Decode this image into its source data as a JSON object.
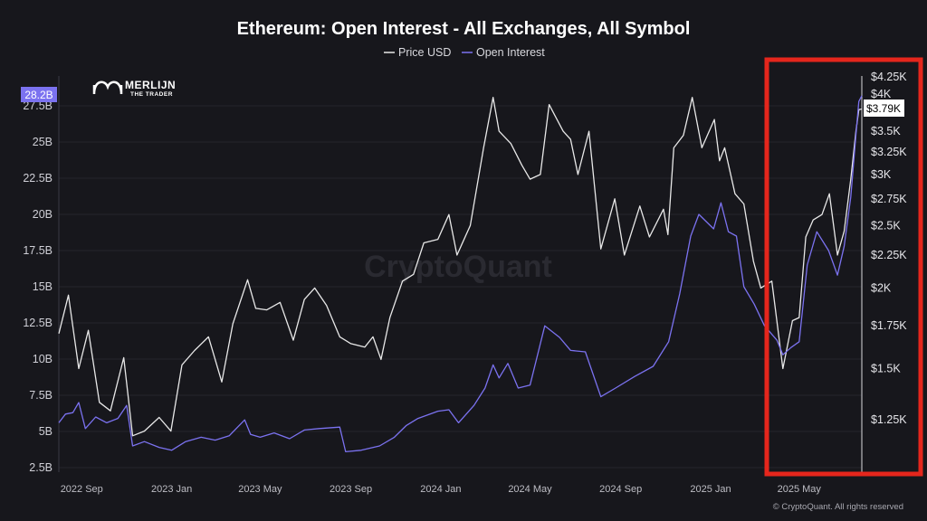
{
  "header": {
    "title": "Ethereum: Open Interest - All Exchanges, All Symbol"
  },
  "legend": {
    "items": [
      {
        "label": "Price USD",
        "color": "#e8e8e8"
      },
      {
        "label": "Open Interest",
        "color": "#7b72f0"
      }
    ]
  },
  "logo": {
    "name": "MERLIJN",
    "sub": "THE TRADER"
  },
  "watermark": "CryptoQuant",
  "copyright": "© CryptoQuant. All rights reserved",
  "current": {
    "oi_label": "28.2B",
    "price_label": "$3.79K"
  },
  "highlight": {
    "color": "#e5261c"
  },
  "chart_data": {
    "type": "line",
    "title": "Ethereum: Open Interest - All Exchanges, All Symbol",
    "x_range": [
      "2022-08-01",
      "2025-07-25"
    ],
    "x_ticks": [
      {
        "date": "2022-09-01",
        "label": "2022 Sep"
      },
      {
        "date": "2023-01-01",
        "label": "2023 Jan"
      },
      {
        "date": "2023-05-01",
        "label": "2023 May"
      },
      {
        "date": "2023-09-01",
        "label": "2023 Sep"
      },
      {
        "date": "2024-01-01",
        "label": "2024 Jan"
      },
      {
        "date": "2024-05-01",
        "label": "2024 May"
      },
      {
        "date": "2024-09-01",
        "label": "2024 Sep"
      },
      {
        "date": "2025-01-01",
        "label": "2025 Jan"
      },
      {
        "date": "2025-05-01",
        "label": "2025 May"
      }
    ],
    "left_axis": {
      "series": "Open Interest",
      "ylim": [
        2.5,
        28.0
      ],
      "ticks": [
        {
          "value": 2.5,
          "label": "2.5B"
        },
        {
          "value": 5,
          "label": "5B"
        },
        {
          "value": 7.5,
          "label": "7.5B"
        },
        {
          "value": 10,
          "label": "10B"
        },
        {
          "value": 12.5,
          "label": "12.5B"
        },
        {
          "value": 15,
          "label": "15B"
        },
        {
          "value": 17.5,
          "label": "17.5B"
        },
        {
          "value": 20,
          "label": "20B"
        },
        {
          "value": 22.5,
          "label": "22.5B"
        },
        {
          "value": 25,
          "label": "25B"
        },
        {
          "value": 27.5,
          "label": "27.5B"
        }
      ]
    },
    "right_axis": {
      "series": "Price USD",
      "scale": "log",
      "ticks": [
        {
          "value": 1250,
          "label": "$1.25K"
        },
        {
          "value": 1500,
          "label": "$1.5K"
        },
        {
          "value": 1750,
          "label": "$1.75K"
        },
        {
          "value": 2000,
          "label": "$2K"
        },
        {
          "value": 2250,
          "label": "$2.25K"
        },
        {
          "value": 2500,
          "label": "$2.5K"
        },
        {
          "value": 2750,
          "label": "$2.75K"
        },
        {
          "value": 3000,
          "label": "$3K"
        },
        {
          "value": 3250,
          "label": "$3.25K"
        },
        {
          "value": 3500,
          "label": "$3.5K"
        },
        {
          "value": 4000,
          "label": "$4K"
        },
        {
          "value": 4250,
          "label": "$4.25K"
        }
      ]
    },
    "grid": "horizontal",
    "series": [
      {
        "name": "Price USD",
        "color": "#e8e8e8",
        "axis": "right",
        "points": [
          [
            "2022-08-01",
            1700
          ],
          [
            "2022-08-14",
            1950
          ],
          [
            "2022-08-28",
            1500
          ],
          [
            "2022-09-10",
            1720
          ],
          [
            "2022-09-25",
            1330
          ],
          [
            "2022-10-10",
            1290
          ],
          [
            "2022-10-28",
            1560
          ],
          [
            "2022-11-09",
            1180
          ],
          [
            "2022-11-25",
            1200
          ],
          [
            "2022-12-15",
            1260
          ],
          [
            "2022-12-31",
            1200
          ],
          [
            "2023-01-15",
            1520
          ],
          [
            "2023-02-01",
            1600
          ],
          [
            "2023-02-20",
            1680
          ],
          [
            "2023-03-10",
            1430
          ],
          [
            "2023-03-25",
            1760
          ],
          [
            "2023-04-14",
            2060
          ],
          [
            "2023-04-25",
            1860
          ],
          [
            "2023-05-10",
            1850
          ],
          [
            "2023-05-28",
            1900
          ],
          [
            "2023-06-15",
            1660
          ],
          [
            "2023-06-30",
            1920
          ],
          [
            "2023-07-14",
            2000
          ],
          [
            "2023-07-30",
            1880
          ],
          [
            "2023-08-17",
            1680
          ],
          [
            "2023-09-01",
            1640
          ],
          [
            "2023-09-20",
            1620
          ],
          [
            "2023-10-01",
            1680
          ],
          [
            "2023-10-12",
            1550
          ],
          [
            "2023-10-24",
            1800
          ],
          [
            "2023-11-10",
            2050
          ],
          [
            "2023-11-25",
            2100
          ],
          [
            "2023-12-09",
            2350
          ],
          [
            "2023-12-28",
            2380
          ],
          [
            "2024-01-12",
            2600
          ],
          [
            "2024-01-23",
            2250
          ],
          [
            "2024-02-10",
            2500
          ],
          [
            "2024-02-28",
            3300
          ],
          [
            "2024-03-12",
            3950
          ],
          [
            "2024-03-20",
            3500
          ],
          [
            "2024-04-05",
            3350
          ],
          [
            "2024-04-20",
            3100
          ],
          [
            "2024-05-01",
            2950
          ],
          [
            "2024-05-15",
            3000
          ],
          [
            "2024-05-27",
            3850
          ],
          [
            "2024-06-15",
            3500
          ],
          [
            "2024-06-25",
            3400
          ],
          [
            "2024-07-05",
            3000
          ],
          [
            "2024-07-20",
            3500
          ],
          [
            "2024-08-05",
            2300
          ],
          [
            "2024-08-24",
            2750
          ],
          [
            "2024-09-06",
            2250
          ],
          [
            "2024-09-27",
            2680
          ],
          [
            "2024-10-10",
            2400
          ],
          [
            "2024-10-29",
            2650
          ],
          [
            "2024-11-04",
            2420
          ],
          [
            "2024-11-12",
            3300
          ],
          [
            "2024-11-25",
            3450
          ],
          [
            "2024-12-07",
            3950
          ],
          [
            "2024-12-20",
            3300
          ],
          [
            "2025-01-06",
            3650
          ],
          [
            "2025-01-13",
            3150
          ],
          [
            "2025-01-20",
            3300
          ],
          [
            "2025-02-03",
            2800
          ],
          [
            "2025-02-15",
            2700
          ],
          [
            "2025-02-28",
            2200
          ],
          [
            "2025-03-10",
            2000
          ],
          [
            "2025-03-25",
            2050
          ],
          [
            "2025-04-09",
            1500
          ],
          [
            "2025-04-22",
            1780
          ],
          [
            "2025-05-01",
            1800
          ],
          [
            "2025-05-10",
            2400
          ],
          [
            "2025-05-20",
            2550
          ],
          [
            "2025-06-01",
            2600
          ],
          [
            "2025-06-11",
            2800
          ],
          [
            "2025-06-22",
            2250
          ],
          [
            "2025-07-01",
            2450
          ],
          [
            "2025-07-10",
            2950
          ],
          [
            "2025-07-17",
            3500
          ],
          [
            "2025-07-21",
            3780
          ],
          [
            "2025-07-25",
            3790
          ]
        ]
      },
      {
        "name": "Open Interest",
        "color": "#7b72f0",
        "axis": "left",
        "points": [
          [
            "2022-08-01",
            5.6
          ],
          [
            "2022-08-10",
            6.2
          ],
          [
            "2022-08-20",
            6.3
          ],
          [
            "2022-08-28",
            7.0
          ],
          [
            "2022-09-06",
            5.2
          ],
          [
            "2022-09-20",
            6.0
          ],
          [
            "2022-10-05",
            5.6
          ],
          [
            "2022-10-20",
            5.9
          ],
          [
            "2022-11-01",
            6.8
          ],
          [
            "2022-11-09",
            4.0
          ],
          [
            "2022-11-25",
            4.3
          ],
          [
            "2022-12-15",
            3.9
          ],
          [
            "2023-01-01",
            3.7
          ],
          [
            "2023-01-20",
            4.3
          ],
          [
            "2023-02-10",
            4.6
          ],
          [
            "2023-03-01",
            4.4
          ],
          [
            "2023-03-20",
            4.7
          ],
          [
            "2023-04-10",
            5.8
          ],
          [
            "2023-04-18",
            4.8
          ],
          [
            "2023-05-01",
            4.6
          ],
          [
            "2023-05-20",
            4.9
          ],
          [
            "2023-06-10",
            4.5
          ],
          [
            "2023-06-30",
            5.1
          ],
          [
            "2023-07-20",
            5.2
          ],
          [
            "2023-08-17",
            5.3
          ],
          [
            "2023-08-25",
            3.6
          ],
          [
            "2023-09-15",
            3.7
          ],
          [
            "2023-10-10",
            4.0
          ],
          [
            "2023-10-30",
            4.6
          ],
          [
            "2023-11-15",
            5.4
          ],
          [
            "2023-12-01",
            5.9
          ],
          [
            "2023-12-28",
            6.4
          ],
          [
            "2024-01-12",
            6.5
          ],
          [
            "2024-01-25",
            5.6
          ],
          [
            "2024-02-15",
            6.8
          ],
          [
            "2024-03-01",
            8.0
          ],
          [
            "2024-03-12",
            9.6
          ],
          [
            "2024-03-20",
            8.7
          ],
          [
            "2024-04-01",
            9.7
          ],
          [
            "2024-04-15",
            8.0
          ],
          [
            "2024-05-01",
            8.2
          ],
          [
            "2024-05-21",
            12.3
          ],
          [
            "2024-06-10",
            11.5
          ],
          [
            "2024-06-25",
            10.6
          ],
          [
            "2024-07-15",
            10.5
          ],
          [
            "2024-08-05",
            7.4
          ],
          [
            "2024-08-25",
            8.0
          ],
          [
            "2024-09-20",
            8.8
          ],
          [
            "2024-10-15",
            9.5
          ],
          [
            "2024-11-05",
            11.2
          ],
          [
            "2024-11-20",
            14.5
          ],
          [
            "2024-12-05",
            18.5
          ],
          [
            "2024-12-16",
            20.0
          ],
          [
            "2025-01-05",
            19.0
          ],
          [
            "2025-01-15",
            20.8
          ],
          [
            "2025-01-25",
            18.8
          ],
          [
            "2025-02-05",
            18.5
          ],
          [
            "2025-02-15",
            15.0
          ],
          [
            "2025-03-01",
            13.8
          ],
          [
            "2025-03-15",
            12.3
          ],
          [
            "2025-04-01",
            11.3
          ],
          [
            "2025-04-09",
            10.3
          ],
          [
            "2025-04-20",
            10.8
          ],
          [
            "2025-05-01",
            11.2
          ],
          [
            "2025-05-12",
            16.5
          ],
          [
            "2025-05-25",
            18.8
          ],
          [
            "2025-06-10",
            17.5
          ],
          [
            "2025-06-22",
            15.8
          ],
          [
            "2025-07-01",
            17.8
          ],
          [
            "2025-07-10",
            21.2
          ],
          [
            "2025-07-17",
            25.5
          ],
          [
            "2025-07-21",
            27.8
          ],
          [
            "2025-07-25",
            28.2
          ]
        ]
      }
    ]
  }
}
